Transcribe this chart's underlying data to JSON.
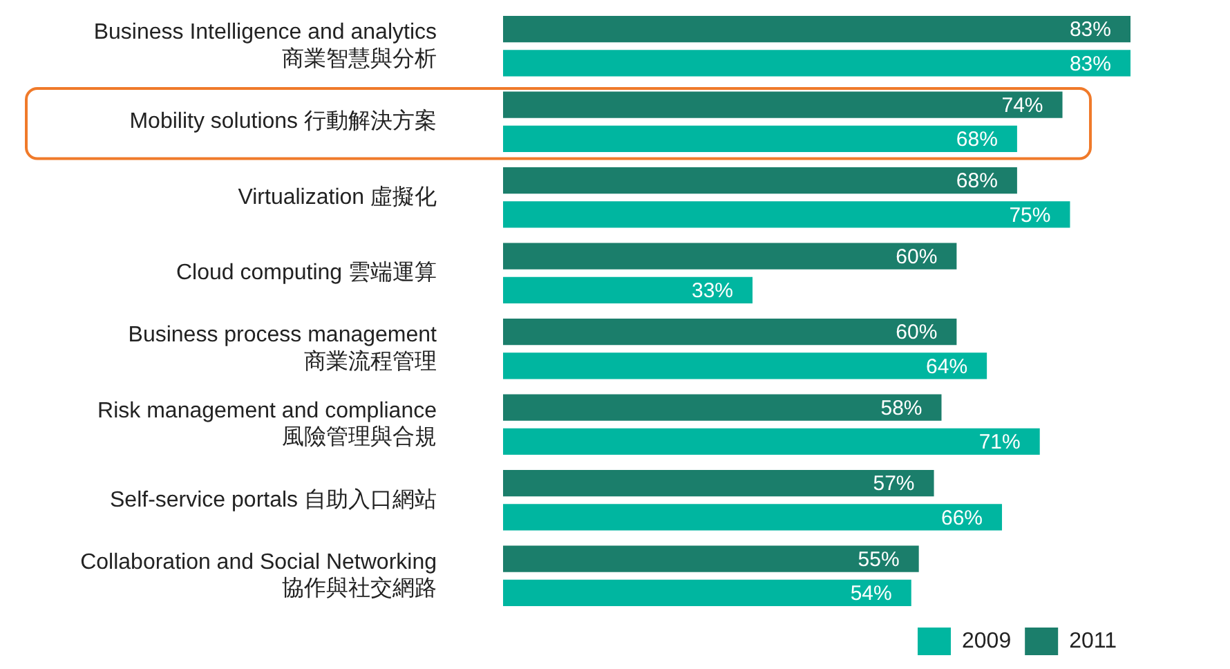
{
  "chart_data": {
    "type": "bar",
    "orientation": "horizontal",
    "legend": "bottom right",
    "tick_labels": "y",
    "categories": [
      "Business Intelligence and analytics\n商業智慧與分析",
      "Mobility solutions 行動解決方案",
      "Virtualization 虛擬化",
      "Cloud computing 雲端運算",
      "Business process management\n商業流程管理",
      "Risk management and compliance\n風險管理與合規",
      "Self-service portals 自助入口網站",
      "Collaboration and Social Networking\n協作與社交網路"
    ],
    "series": [
      {
        "name": "2011",
        "color": "#1b7e6b",
        "values": [
          83,
          74,
          68,
          60,
          60,
          58,
          57,
          55
        ],
        "value_labels": [
          "83%",
          "74%",
          "68%",
          "60%",
          "60%",
          "58%",
          "57%",
          "55%"
        ]
      },
      {
        "name": "2009",
        "color": "#00b6a0",
        "values": [
          83,
          68,
          75,
          33,
          64,
          71,
          66,
          54
        ],
        "value_labels": [
          "83%",
          "68%",
          "75%",
          "33%",
          "64%",
          "71%",
          "66%",
          "54%"
        ]
      }
    ]
  }
}
